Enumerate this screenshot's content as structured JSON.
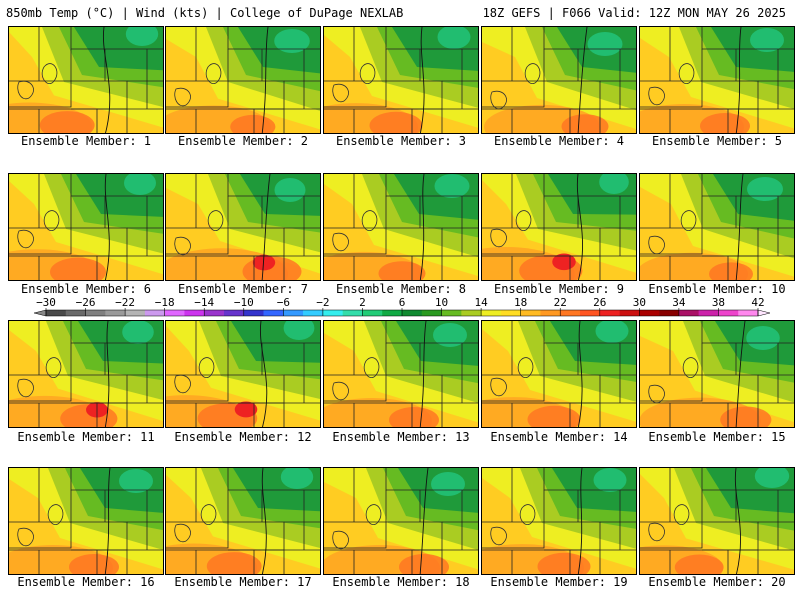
{
  "header": {
    "left_text": "850mb Temp (°C) | Wind (kts) | College of DuPage NEXLAB",
    "right_text": "18Z GEFS | F066 Valid: 12Z MON MAY 26 2025"
  },
  "panels": [
    {
      "caption": "Ensemble Member: 1",
      "warm": 0.58
    },
    {
      "caption": "Ensemble Member: 2",
      "warm": 0.42
    },
    {
      "caption": "Ensemble Member: 3",
      "warm": 0.55
    },
    {
      "caption": "Ensemble Member: 4",
      "warm": 0.45
    },
    {
      "caption": "Ensemble Member: 5",
      "warm": 0.5
    },
    {
      "caption": "Ensemble Member: 6",
      "warm": 0.6
    },
    {
      "caption": "Ensemble Member: 7",
      "warm": 0.65
    },
    {
      "caption": "Ensemble Member: 8",
      "warm": 0.45
    },
    {
      "caption": "Ensemble Member: 9",
      "warm": 0.72
    },
    {
      "caption": "Ensemble Member: 10",
      "warm": 0.4
    },
    {
      "caption": "Ensemble Member: 11",
      "warm": 0.62
    },
    {
      "caption": "Ensemble Member: 12",
      "warm": 0.66
    },
    {
      "caption": "Ensemble Member: 13",
      "warm": 0.5
    },
    {
      "caption": "Ensemble Member: 14",
      "warm": 0.55
    },
    {
      "caption": "Ensemble Member: 15",
      "warm": 0.52
    },
    {
      "caption": "Ensemble Member: 16",
      "warm": 0.5
    },
    {
      "caption": "Ensemble Member: 17",
      "warm": 0.58
    },
    {
      "caption": "Ensemble Member: 18",
      "warm": 0.5
    },
    {
      "caption": "Ensemble Member: 19",
      "warm": 0.55
    },
    {
      "caption": "Ensemble Member: 20",
      "warm": 0.48
    }
  ],
  "colorbar": {
    "min": -30,
    "max": 42,
    "step": 2,
    "ticks": [
      -30,
      -26,
      -22,
      -18,
      -14,
      -10,
      -6,
      -2,
      2,
      6,
      10,
      14,
      18,
      22,
      26,
      30,
      34,
      38,
      42
    ],
    "tick_labels": [
      "−30",
      "−26",
      "−22",
      "−18",
      "−14",
      "−10",
      "−6",
      "−2",
      "2",
      "6",
      "10",
      "14",
      "18",
      "22",
      "26",
      "30",
      "34",
      "38",
      "42"
    ],
    "colors": [
      "#4a4a4a",
      "#6a6a6a",
      "#808080",
      "#9a9a9a",
      "#b4b4b4",
      "#cc99ee",
      "#e066ff",
      "#cc33ee",
      "#9933cc",
      "#6633cc",
      "#3333cc",
      "#3366ff",
      "#3399ff",
      "#33ccff",
      "#33eeee",
      "#33ddaa",
      "#22cc77",
      "#11aa44",
      "#108a30",
      "#2a9a20",
      "#66bb22",
      "#aacc22",
      "#eeee22",
      "#ffdd22",
      "#ffbb22",
      "#ff9922",
      "#ff7722",
      "#ff5522",
      "#ee2222",
      "#cc1111",
      "#aa0000",
      "#880000",
      "#aa1166",
      "#cc22aa",
      "#ee44cc",
      "#ff88ee"
    ]
  }
}
